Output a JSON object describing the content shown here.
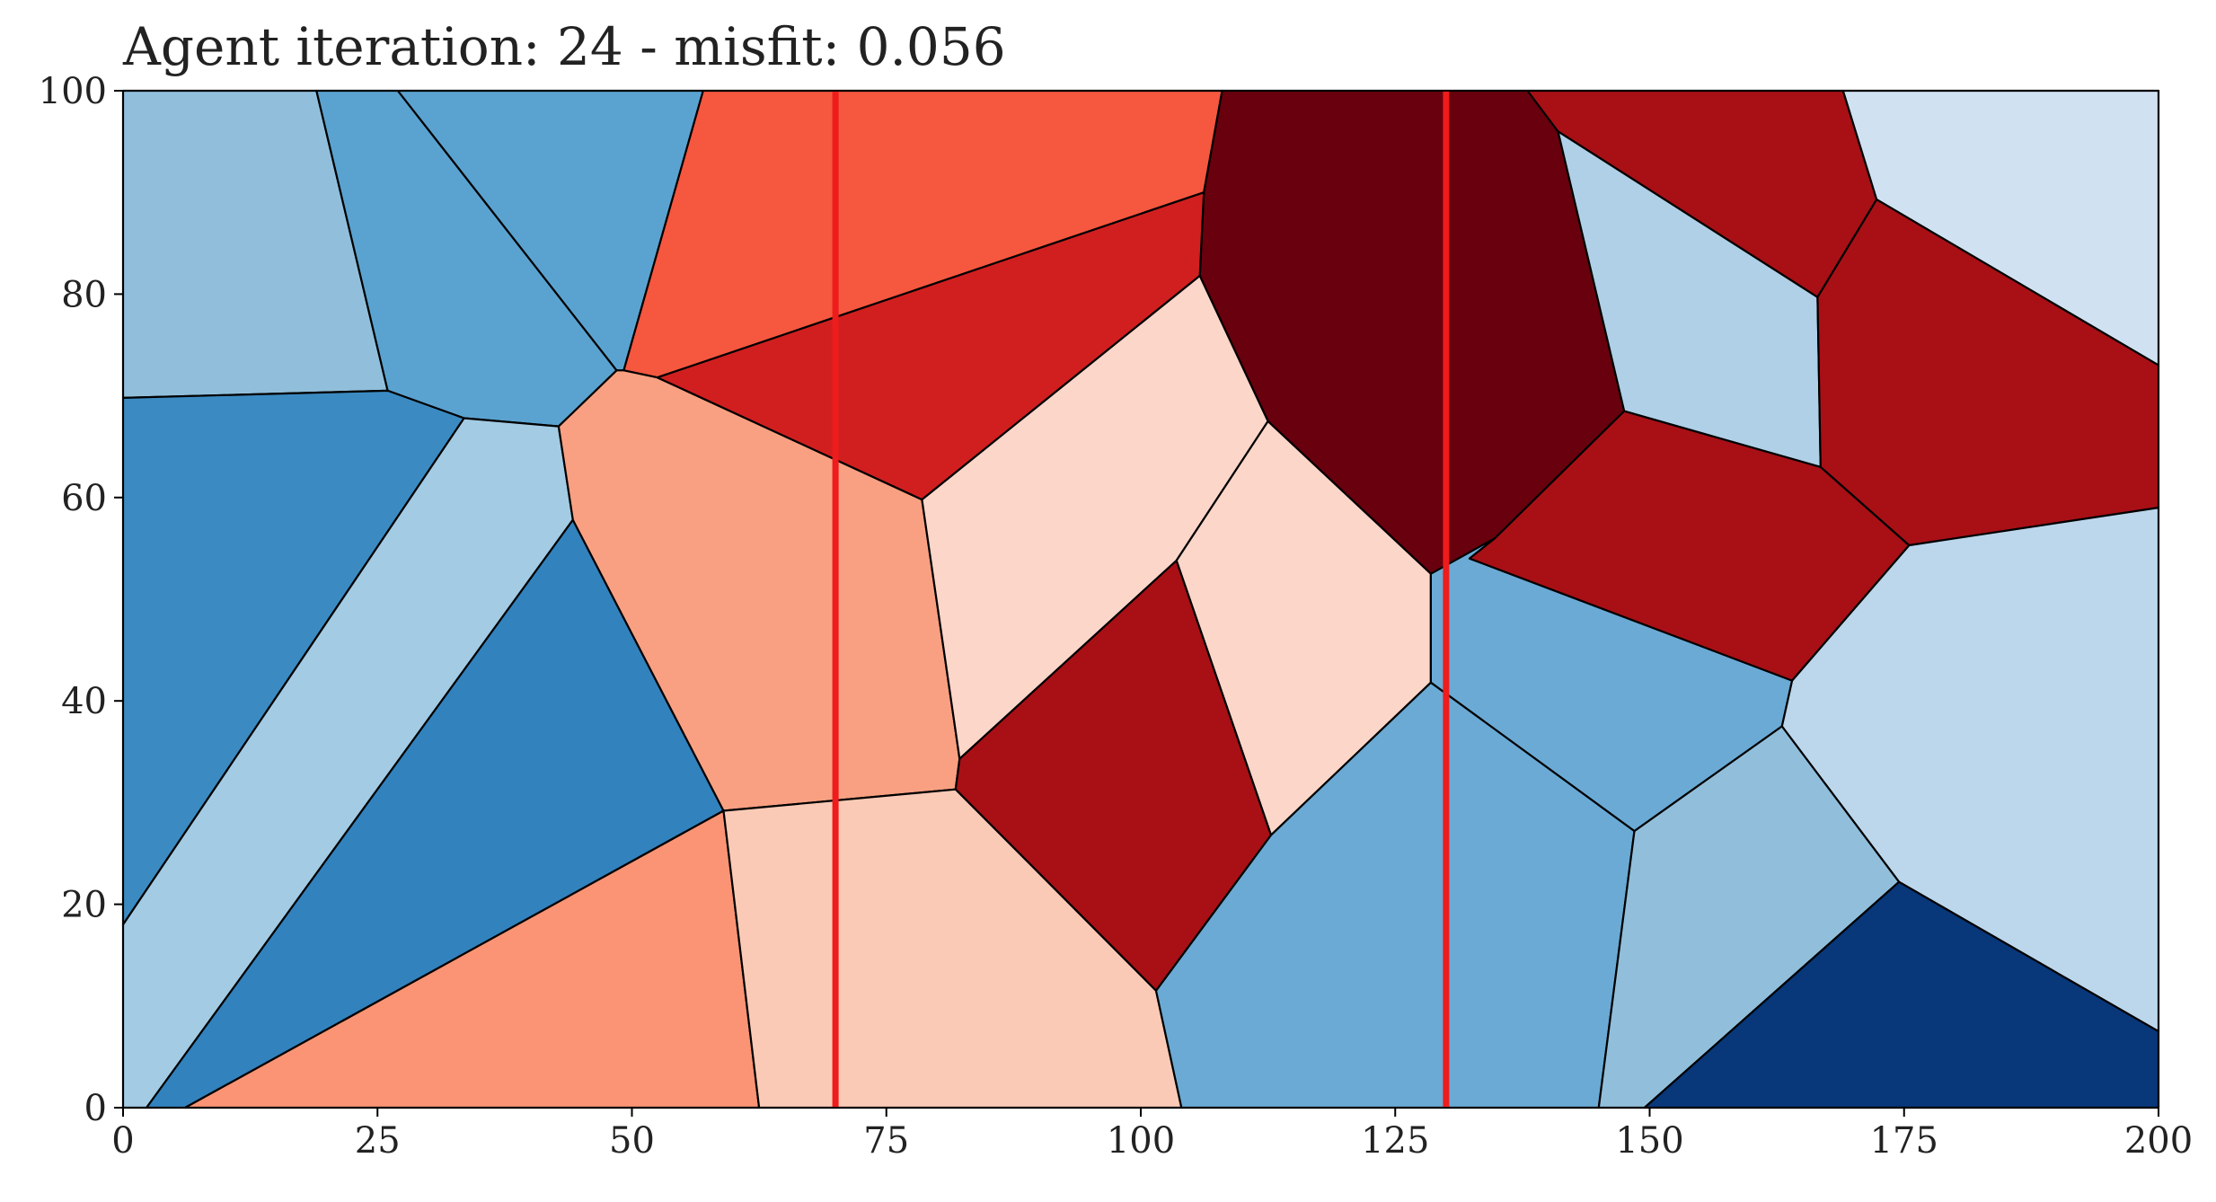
{
  "chart_data": {
    "type": "voronoi",
    "title": "Agent iteration: 24 - misfit: 0.056",
    "xlabel": "",
    "ylabel": "",
    "xlim": [
      0,
      200
    ],
    "ylim": [
      0,
      100
    ],
    "xticks": [
      0,
      25,
      50,
      75,
      100,
      125,
      150,
      175,
      200
    ],
    "yticks": [
      0,
      20,
      40,
      60,
      80,
      100
    ],
    "grid": false,
    "vertical_lines": [
      {
        "x": 70,
        "color": "#ee1c1c"
      },
      {
        "x": 130,
        "color": "#ee1c1c"
      }
    ],
    "cells": [
      {
        "color": "#91bfdb",
        "vertices": [
          [
            0,
            100
          ],
          [
            19,
            100
          ],
          [
            26,
            70.5
          ],
          [
            0,
            69.8
          ]
        ]
      },
      {
        "color": "#5aa3d0",
        "vertices": [
          [
            19,
            100
          ],
          [
            27,
            100
          ],
          [
            48.5,
            72.5
          ],
          [
            42.8,
            67
          ],
          [
            33.5,
            67.8
          ],
          [
            26,
            70.5
          ]
        ]
      },
      {
        "color": "#5aa3d0",
        "vertices": [
          [
            27,
            100
          ],
          [
            57,
            100
          ],
          [
            49.2,
            72.5
          ],
          [
            48.5,
            72.5
          ]
        ]
      },
      {
        "color": "#f6573f",
        "vertices": [
          [
            57,
            100
          ],
          [
            108,
            100
          ],
          [
            106.2,
            90
          ],
          [
            52.5,
            71.8
          ],
          [
            49.2,
            72.5
          ]
        ]
      },
      {
        "color": "#69000d",
        "vertices": [
          [
            108,
            100
          ],
          [
            138,
            100
          ],
          [
            141,
            96
          ],
          [
            147.5,
            68.5
          ],
          [
            134.8,
            56
          ],
          [
            132.3,
            54
          ],
          [
            128.5,
            52.5
          ],
          [
            112.5,
            67.5
          ],
          [
            105.8,
            81.8
          ],
          [
            106.2,
            90
          ]
        ]
      },
      {
        "color": "#a81016",
        "vertices": [
          [
            138,
            100
          ],
          [
            169,
            100
          ],
          [
            172.3,
            89.3
          ],
          [
            166.5,
            79.7
          ],
          [
            141,
            96
          ]
        ]
      },
      {
        "color": "#d0e1f2",
        "vertices": [
          [
            169,
            100
          ],
          [
            200,
            100
          ],
          [
            200,
            73
          ],
          [
            172.3,
            89.3
          ]
        ]
      },
      {
        "color": "#3b8bc2",
        "vertices": [
          [
            0,
            69.8
          ],
          [
            26,
            70.5
          ],
          [
            33.5,
            67.8
          ],
          [
            0,
            18
          ]
        ]
      },
      {
        "color": "#a3cbe3",
        "vertices": [
          [
            33.5,
            67.8
          ],
          [
            42.8,
            67
          ],
          [
            44.2,
            57.8
          ],
          [
            2.3,
            0
          ],
          [
            0,
            0
          ],
          [
            0,
            18
          ]
        ]
      },
      {
        "color": "#3282be",
        "vertices": [
          [
            44.2,
            57.8
          ],
          [
            59,
            29.2
          ],
          [
            6.1,
            0
          ],
          [
            2.3,
            0
          ]
        ]
      },
      {
        "color": "#f9a082",
        "vertices": [
          [
            42.8,
            67
          ],
          [
            48.5,
            72.5
          ],
          [
            49.2,
            72.5
          ],
          [
            52.5,
            71.8
          ],
          [
            78.5,
            59.8
          ],
          [
            82.2,
            34.3
          ],
          [
            81.8,
            31.3
          ],
          [
            59,
            29.2
          ],
          [
            44.2,
            57.8
          ]
        ]
      },
      {
        "color": "#d11f20",
        "vertices": [
          [
            52.5,
            71.8
          ],
          [
            106.2,
            90
          ],
          [
            105.8,
            81.8
          ],
          [
            78.5,
            59.8
          ]
        ]
      },
      {
        "color": "#fcd6c9",
        "vertices": [
          [
            78.5,
            59.8
          ],
          [
            105.8,
            81.8
          ],
          [
            112.5,
            67.5
          ],
          [
            103.5,
            53.8
          ],
          [
            82.2,
            34.3
          ]
        ]
      },
      {
        "color": "#fcd6c9",
        "vertices": [
          [
            112.5,
            67.5
          ],
          [
            128.5,
            52.5
          ],
          [
            128.5,
            41.8
          ],
          [
            112.8,
            26.8
          ],
          [
            103.5,
            53.8
          ]
        ]
      },
      {
        "color": "#a81016",
        "vertices": [
          [
            82.2,
            34.3
          ],
          [
            103.5,
            53.8
          ],
          [
            112.8,
            26.8
          ],
          [
            101.5,
            11.5
          ],
          [
            81.8,
            31.3
          ]
        ]
      },
      {
        "color": "#fa9474",
        "vertices": [
          [
            6.1,
            0
          ],
          [
            59,
            29.2
          ],
          [
            62.5,
            0
          ]
        ]
      },
      {
        "color": "#fbcab6",
        "vertices": [
          [
            59,
            29.2
          ],
          [
            81.8,
            31.3
          ],
          [
            101.5,
            11.5
          ],
          [
            104,
            0
          ],
          [
            62.5,
            0
          ]
        ]
      },
      {
        "color": "#6aaad5",
        "vertices": [
          [
            128.5,
            52.5
          ],
          [
            134.8,
            56
          ],
          [
            132.3,
            54
          ],
          [
            164,
            42
          ],
          [
            163,
            37.5
          ],
          [
            148.5,
            27.2
          ],
          [
            128.5,
            41.8
          ]
        ]
      },
      {
        "color": "#6aaad5",
        "vertices": [
          [
            101.5,
            11.5
          ],
          [
            112.8,
            26.8
          ],
          [
            128.5,
            41.8
          ],
          [
            148.5,
            27.2
          ],
          [
            145,
            0
          ],
          [
            104,
            0
          ]
        ]
      },
      {
        "color": "#a81016",
        "vertices": [
          [
            134.8,
            56
          ],
          [
            147.5,
            68.5
          ],
          [
            166.8,
            63
          ],
          [
            175.5,
            55.3
          ],
          [
            164,
            42
          ],
          [
            132.3,
            54
          ]
        ]
      },
      {
        "color": "#afd0e6",
        "vertices": [
          [
            141,
            96
          ],
          [
            166.5,
            79.7
          ],
          [
            166.8,
            63
          ],
          [
            147.5,
            68.5
          ]
        ]
      },
      {
        "color": "#a81016",
        "vertices": [
          [
            172.3,
            89.3
          ],
          [
            200,
            73
          ],
          [
            200,
            59
          ],
          [
            175.5,
            55.3
          ],
          [
            166.8,
            63
          ],
          [
            166.5,
            79.7
          ]
        ]
      },
      {
        "color": "#bcd7ec",
        "vertices": [
          [
            175.5,
            55.3
          ],
          [
            200,
            59
          ],
          [
            200,
            7.5
          ],
          [
            174.5,
            22.2
          ],
          [
            163,
            37.5
          ],
          [
            164,
            42
          ]
        ]
      },
      {
        "color": "#91bfdb",
        "vertices": [
          [
            148.5,
            27.2
          ],
          [
            163,
            37.5
          ],
          [
            174.5,
            22.2
          ],
          [
            149.5,
            0
          ],
          [
            145,
            0
          ]
        ]
      },
      {
        "color": "#08377a",
        "vertices": [
          [
            149.5,
            0
          ],
          [
            174.5,
            22.2
          ],
          [
            200,
            7.5
          ],
          [
            200,
            0
          ]
        ]
      }
    ]
  }
}
